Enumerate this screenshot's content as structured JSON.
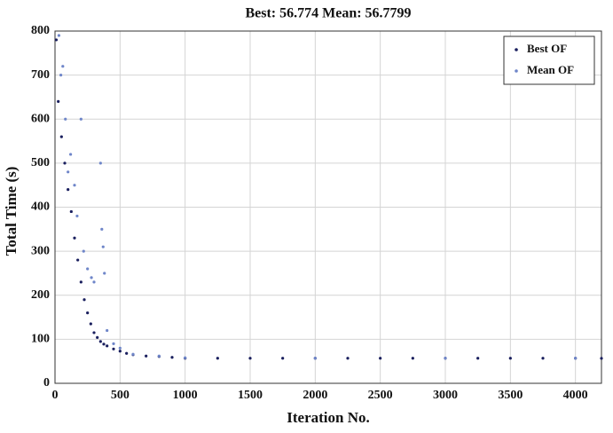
{
  "chart_data": {
    "type": "scatter",
    "title": "Best: 56.774 Mean: 56.7799",
    "x_label": "Iteration No.",
    "y_label": "Total Time (s)",
    "xlim": [
      0,
      4200
    ],
    "ylim": [
      0,
      800
    ],
    "xticks": [
      0,
      500,
      1000,
      1500,
      2000,
      2500,
      3000,
      3500,
      4000
    ],
    "yticks": [
      0,
      100,
      200,
      300,
      400,
      500,
      600,
      700,
      800
    ],
    "grid": true,
    "legend": "upper-right",
    "series": [
      {
        "name": "Best OF",
        "color": "#1a1f5e",
        "x": [
          10,
          25,
          50,
          75,
          100,
          125,
          150,
          175,
          200,
          225,
          250,
          275,
          300,
          325,
          350,
          375,
          400,
          450,
          500,
          550,
          600,
          700,
          800,
          900,
          1000,
          1250,
          1500,
          1750,
          2000,
          2250,
          2500,
          2750,
          3000,
          3250,
          3500,
          3750,
          4000,
          4200
        ],
        "values": [
          780,
          640,
          560,
          500,
          440,
          390,
          330,
          280,
          230,
          190,
          160,
          135,
          115,
          104,
          95,
          89,
          85,
          78,
          73,
          68,
          65,
          62,
          61,
          59,
          57,
          57,
          57,
          57,
          57,
          57,
          57,
          57,
          57,
          57,
          57,
          57,
          57,
          56.8
        ]
      },
      {
        "name": "Mean OF",
        "color": "#6f86c9",
        "x": [
          30,
          45,
          60,
          80,
          100,
          120,
          150,
          170,
          200,
          220,
          250,
          280,
          300,
          350,
          360,
          370,
          380,
          400,
          450,
          500,
          600,
          800,
          1000,
          2000,
          3000,
          4000
        ],
        "values": [
          790,
          700,
          720,
          600,
          480,
          520,
          450,
          380,
          600,
          300,
          260,
          240,
          230,
          500,
          350,
          310,
          250,
          120,
          90,
          80,
          66,
          62,
          58,
          57,
          57,
          57
        ]
      }
    ]
  }
}
